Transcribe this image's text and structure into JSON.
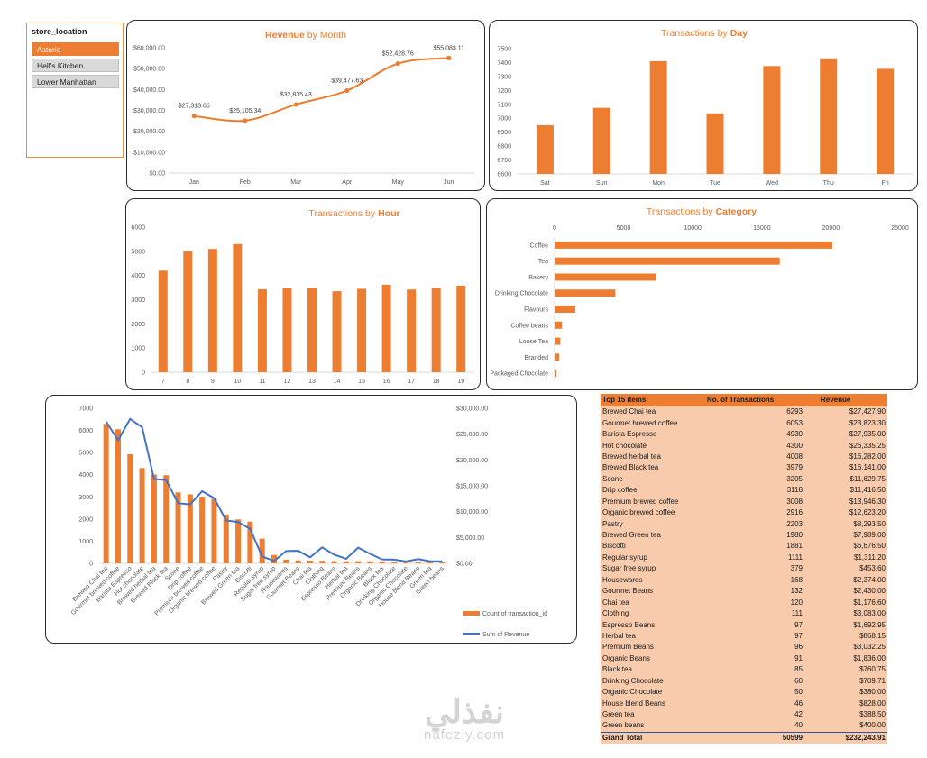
{
  "colors": {
    "accent": "#ed7d31",
    "line": "#4472c4",
    "slicer_bg": "#d9d9d9",
    "table_row": "#f8cbad"
  },
  "slicer": {
    "title": "store_location",
    "items": [
      {
        "label": "Astoria",
        "selected": true
      },
      {
        "label": "Hell's Kitchen",
        "selected": false
      },
      {
        "label": "Lower Manhattan",
        "selected": false
      }
    ]
  },
  "chart_data": [
    {
      "id": "revenue_month",
      "type": "line",
      "title": {
        "bold": "Revenue",
        "rest": " by Month"
      },
      "categories": [
        "Jan",
        "Feb",
        "Mar",
        "Apr",
        "May",
        "Jun"
      ],
      "values": [
        27313.66,
        25105.34,
        32835.43,
        39477.63,
        52428.76,
        55083.11
      ],
      "data_labels": [
        "$27,313.66",
        "$25,105.34",
        "$32,835.43",
        "$39,477.63",
        "$52,428.76",
        "$55,083.11"
      ],
      "ylim": [
        0,
        60000
      ],
      "yticks": [
        "$0.00",
        "$10,000.00",
        "$20,000.00",
        "$30,000.00",
        "$40,000.00",
        "$50,000.00",
        "$60,000.00"
      ]
    },
    {
      "id": "tx_day",
      "type": "bar",
      "title": {
        "rest": "Transactions by ",
        "bold": "Day"
      },
      "categories": [
        "Sat",
        "Sun",
        "Mon",
        "Tue",
        "Wed",
        "Thu",
        "Fri"
      ],
      "values": [
        6950,
        7075,
        7410,
        7035,
        7375,
        7430,
        7355
      ],
      "ylim": [
        6600,
        7500
      ],
      "yticks": [
        "6600",
        "6700",
        "6800",
        "6900",
        "7000",
        "7100",
        "7200",
        "7300",
        "7400",
        "7500"
      ]
    },
    {
      "id": "tx_hour",
      "type": "bar",
      "title": {
        "rest": "Transactions by ",
        "bold": "Hour"
      },
      "categories": [
        "7",
        "8",
        "9",
        "10",
        "11",
        "12",
        "13",
        "14",
        "15",
        "16",
        "17",
        "18",
        "19"
      ],
      "values": [
        4200,
        5000,
        5100,
        5300,
        3430,
        3470,
        3480,
        3350,
        3450,
        3620,
        3420,
        3480,
        3580
      ],
      "ylim": [
        0,
        6000
      ],
      "yticks": [
        "0",
        "1000",
        "2000",
        "3000",
        "4000",
        "5000",
        "6000"
      ]
    },
    {
      "id": "tx_category",
      "type": "bar",
      "title": {
        "rest": "Transactions by ",
        "bold": "Category"
      },
      "categories": [
        "Coffee",
        "Tea",
        "Bakery",
        "Drinking Chocolate",
        "Flavours",
        "Coffee beans",
        "Loose Tea",
        "Branded",
        "Packaged Chocolate"
      ],
      "values": [
        20100,
        16300,
        7350,
        4400,
        1500,
        530,
        410,
        340,
        130
      ],
      "xlim": [
        0,
        25000
      ],
      "xticks": [
        "0",
        "5000",
        "10000",
        "15000",
        "20000",
        "25000"
      ]
    },
    {
      "id": "top_items",
      "type": "bar",
      "categories": [
        "Brewed Chai tea",
        "Gourmet brewed coffee",
        "Barista Espresso",
        "Hot chocolate",
        "Brewed herbal tea",
        "Brewed Black tea",
        "Scone",
        "Drip coffee",
        "Premium brewed coffee",
        "Organic brewed coffee",
        "Pastry",
        "Brewed Green tea",
        "Biscotti",
        "Regular syrup",
        "Sugar free syrup",
        "Housewares",
        "Gourmet Beans",
        "Chai tea",
        "Clothing",
        "Espresso Beans",
        "Herbal tea",
        "Premium Beans",
        "Organic Beans",
        "Black tea",
        "Drinking Chocolate",
        "Organic Chocolate",
        "House blend Beans",
        "Green tea",
        "Green beans"
      ],
      "series": [
        {
          "name": "Count of transaction_id",
          "axis": "left",
          "values": [
            6293,
            6053,
            4930,
            4300,
            4008,
            3979,
            3205,
            3118,
            3008,
            2916,
            2203,
            1980,
            1881,
            1111,
            379,
            168,
            132,
            120,
            111,
            97,
            97,
            96,
            91,
            85,
            60,
            50,
            46,
            42,
            40
          ]
        },
        {
          "name": "Sum of Revenue",
          "axis": "right",
          "values": [
            27427.9,
            23823.3,
            27935.0,
            26335.25,
            16282.0,
            16141.0,
            11629.75,
            11416.5,
            13946.3,
            12623.2,
            8293.5,
            7989.0,
            6676.5,
            1311.2,
            453.6,
            2374.0,
            2430.0,
            1176.6,
            3083.0,
            1692.95,
            868.15,
            3032.25,
            1836.0,
            760.75,
            709.71,
            380.0,
            828.0,
            388.5,
            400.0
          ]
        }
      ],
      "ylim_left": [
        0,
        7000
      ],
      "yticks_left": [
        "0",
        "1000",
        "2000",
        "3000",
        "4000",
        "5000",
        "6000",
        "7000"
      ],
      "ylim_right": [
        0,
        30000
      ],
      "yticks_right": [
        "$0.00",
        "$5,000.00",
        "$10,000.00",
        "$15,000.00",
        "$20,000.00",
        "$25,000.00",
        "$30,000.00"
      ]
    }
  ],
  "table": {
    "headers": [
      "Top 15 items",
      "No. of Transactions",
      "Revenue"
    ],
    "rows": [
      [
        "Brewed Chai tea",
        "6293",
        "$27,427.90"
      ],
      [
        "Gourmet brewed coffee",
        "6053",
        "$23,823.30"
      ],
      [
        "Barista Espresso",
        "4930",
        "$27,935.00"
      ],
      [
        "Hot chocolate",
        "4300",
        "$26,335.25"
      ],
      [
        "Brewed herbal tea",
        "4008",
        "$16,282.00"
      ],
      [
        "Brewed Black tea",
        "3979",
        "$16,141.00"
      ],
      [
        "Scone",
        "3205",
        "$11,629.75"
      ],
      [
        "Drip coffee",
        "3118",
        "$11,416.50"
      ],
      [
        "Premium brewed coffee",
        "3008",
        "$13,946.30"
      ],
      [
        "Organic brewed coffee",
        "2916",
        "$12,623.20"
      ],
      [
        "Pastry",
        "2203",
        "$8,293.50"
      ],
      [
        "Brewed Green tea",
        "1980",
        "$7,989.00"
      ],
      [
        "Biscotti",
        "1881",
        "$6,676.50"
      ],
      [
        "Regular syrup",
        "1111",
        "$1,311.20"
      ],
      [
        "Sugar free syrup",
        "379",
        "$453.60"
      ],
      [
        "Housewares",
        "168",
        "$2,374.00"
      ],
      [
        "Gourmet Beans",
        "132",
        "$2,430.00"
      ],
      [
        "Chai tea",
        "120",
        "$1,176.60"
      ],
      [
        "Clothing",
        "111",
        "$3,083.00"
      ],
      [
        "Espresso Beans",
        "97",
        "$1,692.95"
      ],
      [
        "Herbal tea",
        "97",
        "$868.15"
      ],
      [
        "Premium Beans",
        "96",
        "$3,032.25"
      ],
      [
        "Organic Beans",
        "91",
        "$1,836.00"
      ],
      [
        "Black tea",
        "85",
        "$760.75"
      ],
      [
        "Drinking Chocolate",
        "60",
        "$709.71"
      ],
      [
        "Organic Chocolate",
        "50",
        "$380.00"
      ],
      [
        "House blend Beans",
        "46",
        "$828.00"
      ],
      [
        "Green tea",
        "42",
        "$388.50"
      ],
      [
        "Green beans",
        "40",
        "$400.00"
      ]
    ],
    "total": [
      "Grand Total",
      "50599",
      "$232,243.91"
    ]
  },
  "watermark": {
    "arabic": "نفذلي",
    "latin": "nafezly.com"
  }
}
